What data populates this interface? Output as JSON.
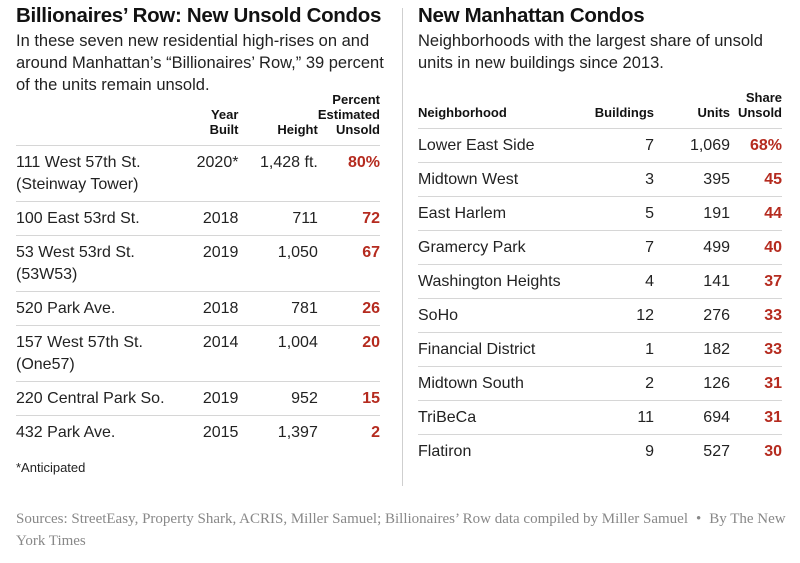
{
  "left": {
    "title": "Billionaires’ Row: New Unsold Condos",
    "description": "In these seven new residential high-rises on and around Manhattan’s “Billionaires’ Row,” 39 percent of the units remain unsold.",
    "headers": {
      "building": "",
      "year": "Year Built",
      "height": "Height",
      "pct": "Percent Estimated Unsold"
    },
    "rows": [
      {
        "name": "111 West 57th St. (Steinway Tower)",
        "year": "2020*",
        "height": "1,428 ft.",
        "pct": "80%"
      },
      {
        "name": "100 East 53rd St.",
        "year": "2018",
        "height": "711",
        "pct": "72"
      },
      {
        "name": "53 West 53rd St. (53W53)",
        "year": "2019",
        "height": "1,050",
        "pct": "67"
      },
      {
        "name": "520 Park Ave.",
        "year": "2018",
        "height": "781",
        "pct": "26"
      },
      {
        "name": "157 West 57th St. (One57)",
        "year": "2014",
        "height": "1,004",
        "pct": "20"
      },
      {
        "name": "220 Central Park So.",
        "year": "2019",
        "height": "952",
        "pct": "15"
      },
      {
        "name": "432 Park Ave.",
        "year": "2015",
        "height": "1,397",
        "pct": "2"
      }
    ],
    "footnote": "*Anticipated"
  },
  "right": {
    "title": "New Manhattan Condos",
    "description": "Neighborhoods with the largest share of unsold units in new buildings since 2013.",
    "headers": {
      "neighborhood": "Neighborhood",
      "buildings": "Buildings",
      "units": "Units",
      "share": "Share Unsold"
    },
    "rows": [
      {
        "name": "Lower East Side",
        "buildings": "7",
        "units": "1,069",
        "share": "68%"
      },
      {
        "name": "Midtown West",
        "buildings": "3",
        "units": "395",
        "share": "45"
      },
      {
        "name": "East Harlem",
        "buildings": "5",
        "units": "191",
        "share": "44"
      },
      {
        "name": "Gramercy Park",
        "buildings": "7",
        "units": "499",
        "share": "40"
      },
      {
        "name": "Washington Heights",
        "buildings": "4",
        "units": "141",
        "share": "37"
      },
      {
        "name": "SoHo",
        "buildings": "12",
        "units": "276",
        "share": "33"
      },
      {
        "name": "Financial District",
        "buildings": "1",
        "units": "182",
        "share": "33"
      },
      {
        "name": "Midtown South",
        "buildings": "2",
        "units": "126",
        "share": "31"
      },
      {
        "name": "TriBeCa",
        "buildings": "11",
        "units": "694",
        "share": "31"
      },
      {
        "name": "Flatiron",
        "buildings": "9",
        "units": "527",
        "share": "30"
      }
    ]
  },
  "source": {
    "text": "Sources: StreetEasy, Property Shark, ACRIS, Miller Samuel; Billionaires’ Row data compiled by Miller Samuel",
    "separator": "•",
    "byline": "By The New York Times"
  },
  "colors": {
    "highlight": "#b52b1f",
    "divider": "#d6d6d6",
    "source_text": "#888888"
  }
}
